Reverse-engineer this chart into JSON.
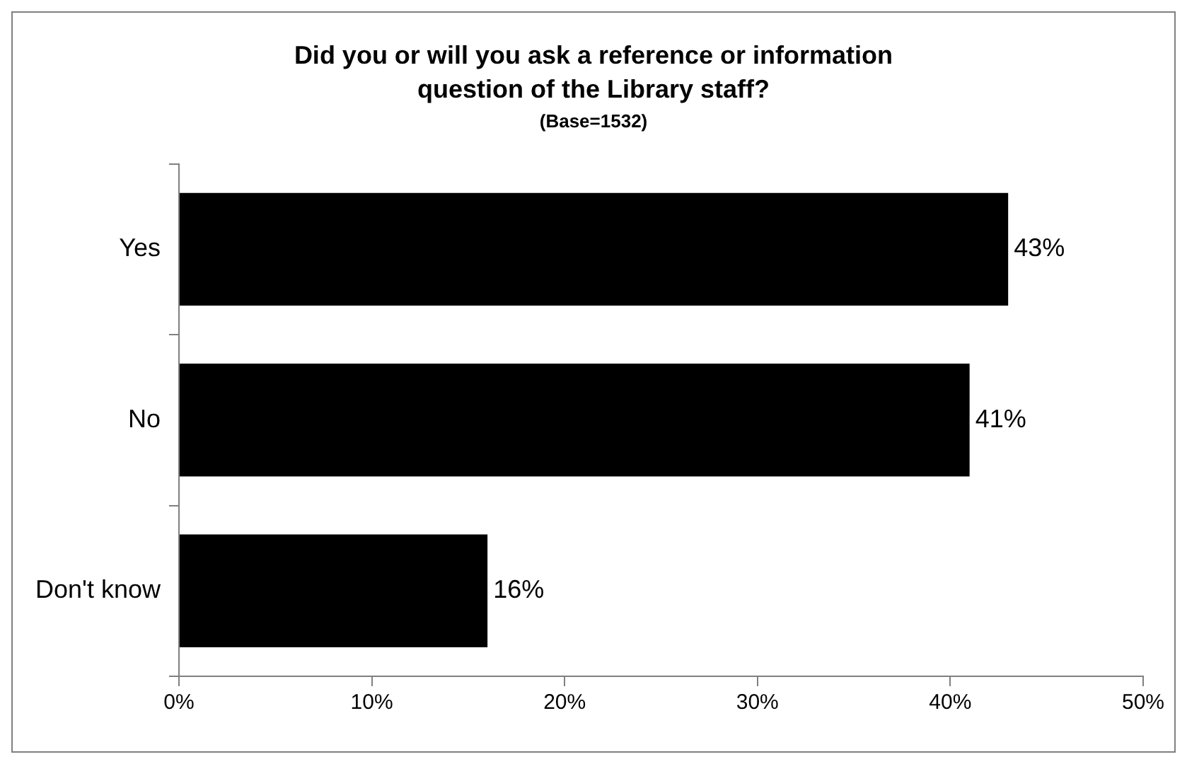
{
  "chart_data": {
    "type": "bar",
    "orientation": "horizontal",
    "title": "Did you or will you ask a reference or information question of the Library staff?",
    "subtitle": "(Base=1532)",
    "categories": [
      "Yes",
      "No",
      "Don't know"
    ],
    "values": [
      43,
      41,
      16
    ],
    "value_labels": [
      "43%",
      "41%",
      "16%"
    ],
    "color": "#000000",
    "xlim": [
      0,
      50
    ],
    "xticks": [
      {
        "value": 0,
        "label": "0%"
      },
      {
        "value": 10,
        "label": "10%"
      },
      {
        "value": 20,
        "label": "20%"
      },
      {
        "value": 30,
        "label": "30%"
      },
      {
        "value": 40,
        "label": "40%"
      },
      {
        "value": 50,
        "label": "50%"
      }
    ],
    "grid": false,
    "legend": false
  }
}
